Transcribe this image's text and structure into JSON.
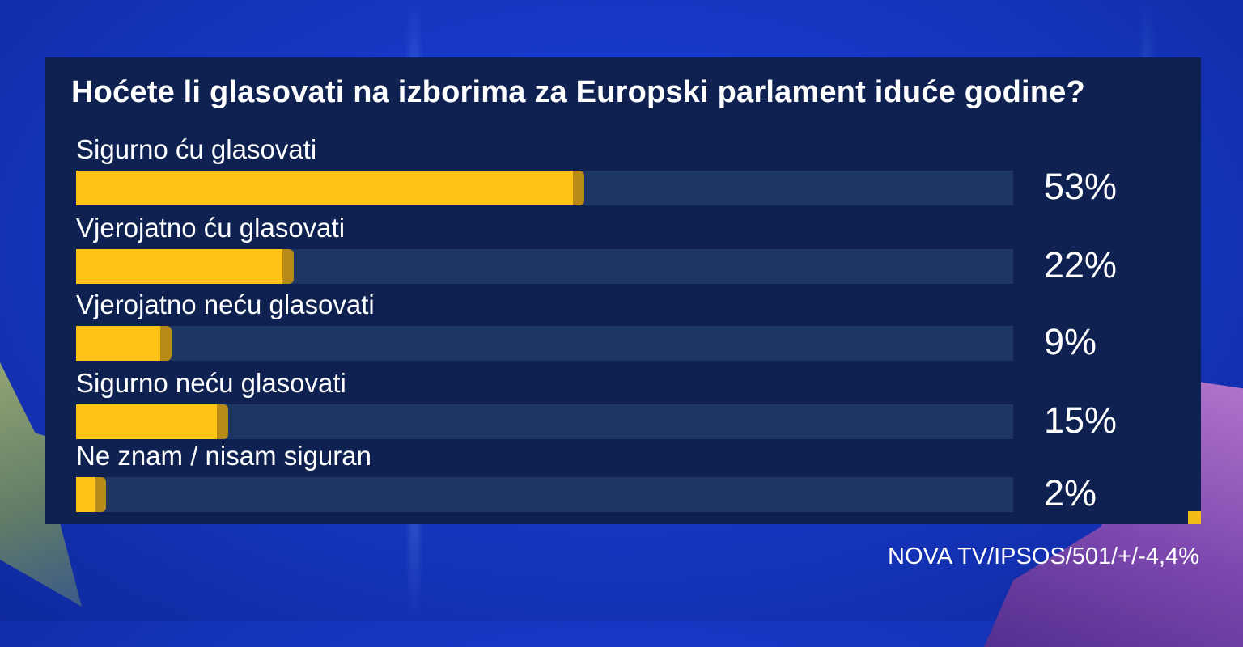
{
  "title": "Hoćete li glasovati na izborima za Europski parlament iduće godine?",
  "source": "NOVA TV/IPSOS/501/+/-4,4%",
  "colors": {
    "panel": "#0e2150",
    "bar_fill": "#ffc316",
    "bar_track": "#1d3664",
    "background": "#1737c4"
  },
  "chart_data": {
    "type": "bar",
    "orientation": "horizontal",
    "title": "Hoćete li glasovati na izborima za Europski parlament iduće godine?",
    "categories": [
      "Sigurno ću glasovati",
      "Vjerojatno ću glasovati",
      "Vjerojatno neću glasovati",
      "Sigurno neću glasovati",
      "Ne znam / nisam siguran"
    ],
    "values": [
      53,
      22,
      9,
      15,
      2
    ],
    "value_labels": [
      "53%",
      "22%",
      "9%",
      "15%",
      "2%"
    ],
    "xlim": [
      0,
      100
    ],
    "grid": false,
    "legend": "none"
  }
}
